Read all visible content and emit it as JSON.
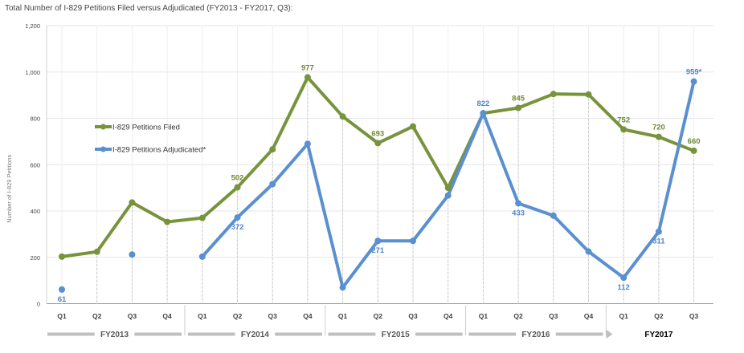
{
  "chart_data": {
    "type": "line",
    "title": "Total Number of I-829 Petitions Filed versus Adjudicated (FY2013 - FY2017, Q3):",
    "ylabel": "Number of I-829 Petitions",
    "xlabel": "",
    "ylim": [
      0,
      1200
    ],
    "yticks": [
      0,
      200,
      400,
      600,
      800,
      1000,
      1200
    ],
    "ytick_labels": [
      "0",
      "200",
      "400",
      "600",
      "800",
      "1,000",
      "1,200"
    ],
    "grid": true,
    "legend_position": "upper-left",
    "categories": [
      "Q1",
      "Q2",
      "Q3",
      "Q4",
      "Q1",
      "Q2",
      "Q3",
      "Q4",
      "Q1",
      "Q2",
      "Q3",
      "Q4",
      "Q1",
      "Q2",
      "Q3",
      "Q4",
      "Q1",
      "Q2",
      "Q3"
    ],
    "fiscal_years": [
      {
        "label": "FY2013",
        "start": 0,
        "end": 3,
        "bold": false
      },
      {
        "label": "FY2014",
        "start": 4,
        "end": 7,
        "bold": false
      },
      {
        "label": "FY2015",
        "start": 8,
        "end": 11,
        "bold": false
      },
      {
        "label": "FY2016",
        "start": 12,
        "end": 15,
        "bold": false
      },
      {
        "label": "FY2017",
        "start": 16,
        "end": 18,
        "bold": true
      }
    ],
    "series": [
      {
        "name": "I-829 Petitions Filed",
        "color": "#77933c",
        "values": [
          203,
          224,
          437,
          353,
          370,
          502,
          666,
          977,
          808,
          693,
          765,
          500,
          822,
          845,
          905,
          903,
          752,
          720,
          660
        ],
        "data_labels": [
          null,
          null,
          null,
          null,
          null,
          "502",
          null,
          "977",
          null,
          "693",
          null,
          null,
          null,
          "845",
          null,
          null,
          "752",
          "720",
          "660"
        ]
      },
      {
        "name": "I-829 Petitions Adjudicated*",
        "color": "#5a8fd0",
        "values": [
          61,
          null,
          212,
          null,
          203,
          372,
          516,
          690,
          70,
          271,
          271,
          467,
          822,
          433,
          380,
          225,
          112,
          311,
          959
        ],
        "data_labels": [
          "61",
          null,
          null,
          null,
          null,
          "372",
          null,
          null,
          null,
          "271",
          null,
          null,
          "822",
          "433",
          null,
          null,
          "112",
          "311",
          "959*"
        ]
      }
    ]
  }
}
